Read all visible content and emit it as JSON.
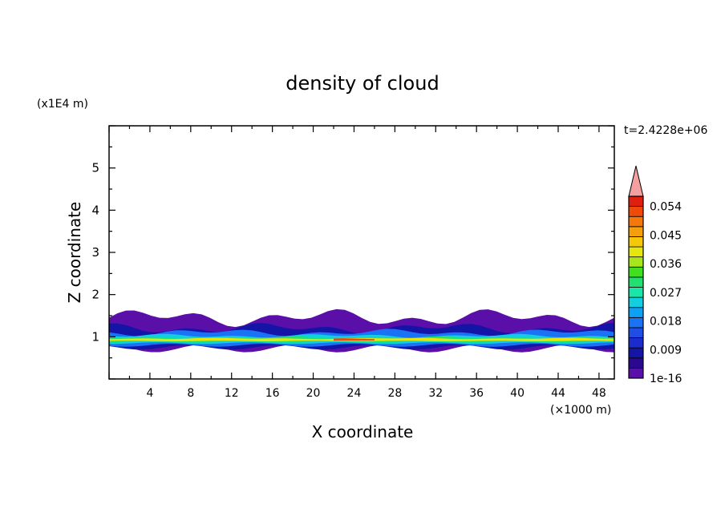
{
  "chart_data": {
    "type": "heatmap",
    "title": "density of cloud",
    "xlabel": "X coordinate",
    "ylabel": "Z coordinate",
    "x_unit": "(×1000 m)",
    "y_unit": "(x1E4 m)",
    "time_label": "t=2.4228e+06",
    "xlim": [
      0,
      49.5
    ],
    "ylim": [
      0,
      6
    ],
    "x_ticks": [
      "4",
      "8",
      "12",
      "16",
      "20",
      "24",
      "28",
      "32",
      "36",
      "40",
      "44",
      "48"
    ],
    "y_ticks": [
      "1",
      "2",
      "3",
      "4",
      "5"
    ],
    "colorbar": {
      "levels_labels": [
        "1e-16",
        "0.009",
        "0.018",
        "0.027",
        "0.036",
        "0.045",
        "0.054"
      ],
      "colors": [
        "#5a0fa8",
        "#2a0890",
        "#1414a6",
        "#1c2ccc",
        "#1f4de6",
        "#1a72f5",
        "#0ea0f5",
        "#12cfe0",
        "#1ae6a8",
        "#20e070",
        "#40e020",
        "#a6e61a",
        "#e6e60f",
        "#f5c80a",
        "#f5a00a",
        "#f5780a",
        "#f04a0a",
        "#e0200f",
        "#f4a0a0"
      ],
      "over_color": "#f4a0a0"
    },
    "bands": [
      {
        "level": 0,
        "color": "#5a0fa8",
        "z_range": [
          0.72,
          1.45
        ]
      },
      {
        "level": 2,
        "color": "#1414a6",
        "z_range": [
          0.75,
          1.2
        ]
      },
      {
        "level": 5,
        "color": "#1a72f5",
        "z_range": [
          0.8,
          1.1
        ]
      },
      {
        "level": 7,
        "color": "#12cfe0",
        "z_range": [
          0.85,
          1.02
        ]
      },
      {
        "level": 9,
        "color": "#20e070",
        "z_range": [
          0.88,
          0.98
        ]
      },
      {
        "level": 12,
        "color": "#e6e60f",
        "z_range": [
          0.9,
          0.96
        ]
      },
      {
        "level": 16,
        "color": "#f04a0a",
        "z_range": [
          0.91,
          0.95
        ],
        "x_range": [
          22,
          26
        ]
      }
    ]
  }
}
